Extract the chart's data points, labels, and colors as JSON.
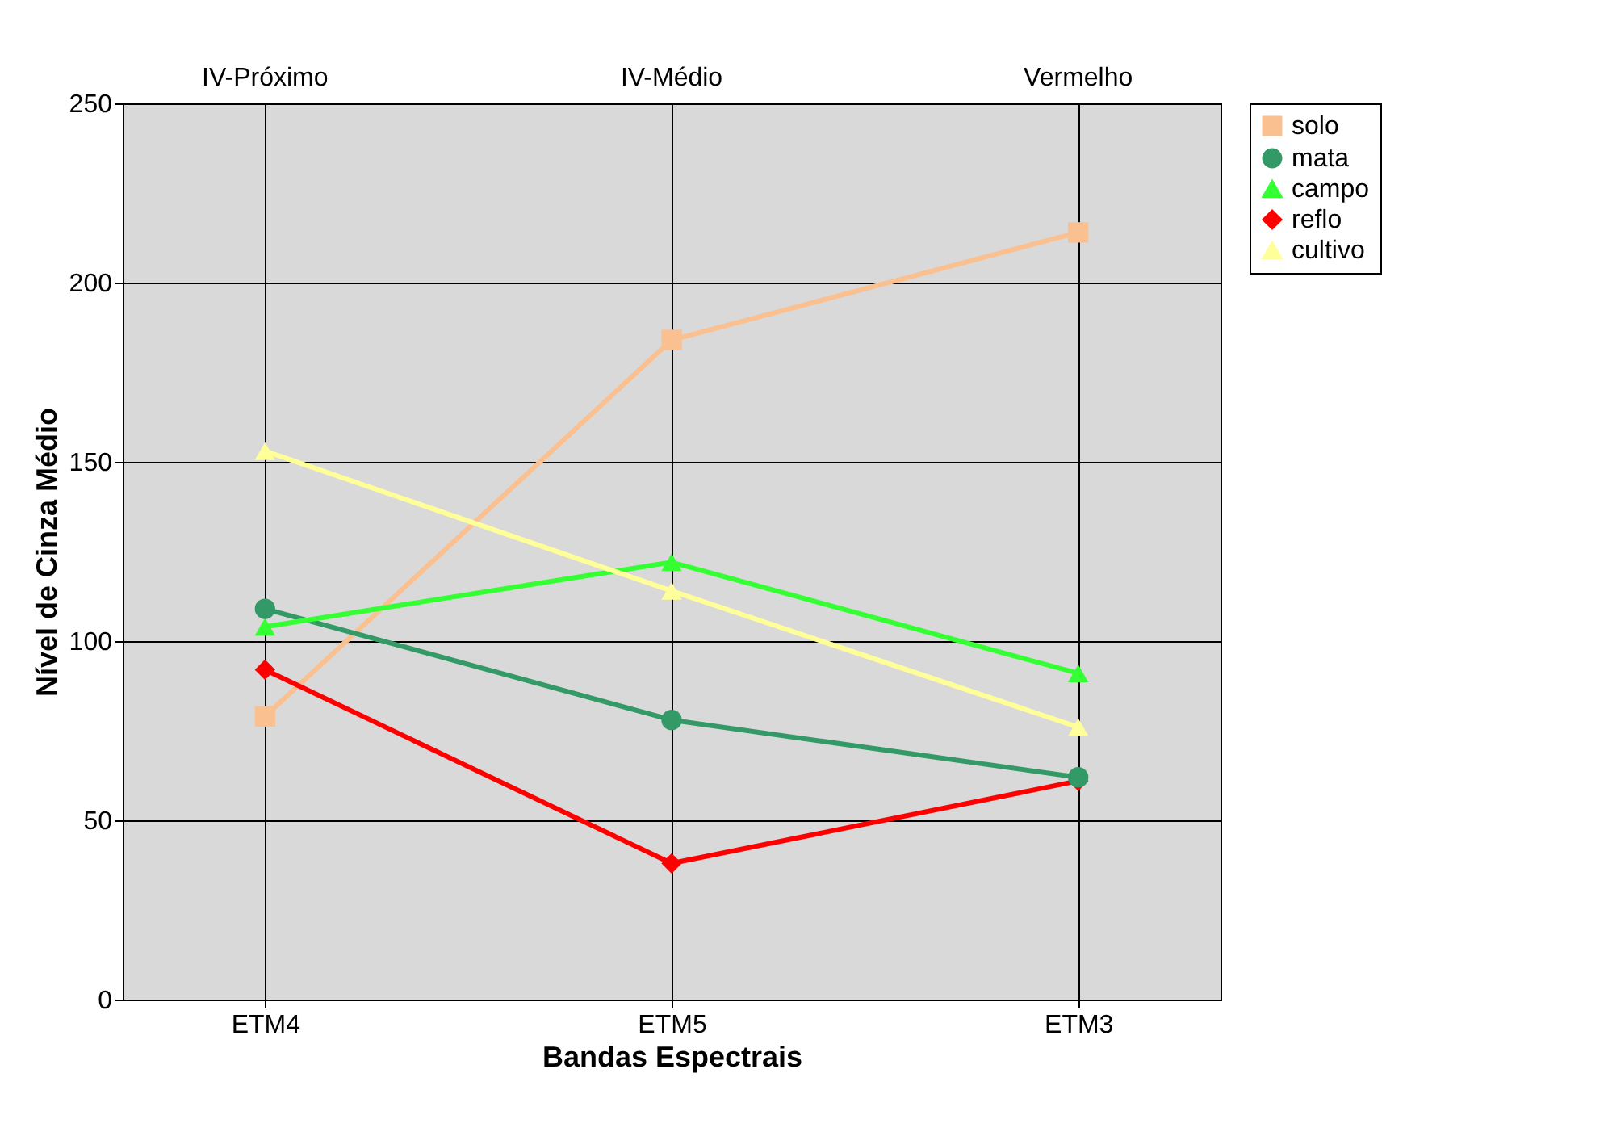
{
  "chart_data": {
    "type": "line",
    "xlabel": "Bandas Espectrais",
    "ylabel": "Nível de Cinza Médio",
    "categories": [
      "ETM4",
      "ETM5",
      "ETM3"
    ],
    "series": [
      {
        "name": "solo",
        "color": "#fac090",
        "marker": "square",
        "values": [
          79,
          184,
          214
        ]
      },
      {
        "name": "mata",
        "color": "#339966",
        "marker": "circle",
        "values": [
          109,
          78,
          62
        ]
      },
      {
        "name": "campo",
        "color": "#33ff33",
        "marker": "triangle",
        "values": [
          104,
          122,
          91
        ]
      },
      {
        "name": "reflo",
        "color": "#ff0000",
        "marker": "diamond",
        "values": [
          92,
          38,
          61
        ]
      },
      {
        "name": "cultivo",
        "color": "#ffff99",
        "marker": "triangle",
        "values": [
          153,
          114,
          76
        ]
      }
    ],
    "annotations": [
      "IV-Próximo",
      "IV-Médio",
      "Vermelho"
    ],
    "ylim": [
      0,
      250
    ],
    "yticks": [
      0,
      50,
      100,
      150,
      200,
      250
    ],
    "grid": true,
    "legend": "right"
  }
}
